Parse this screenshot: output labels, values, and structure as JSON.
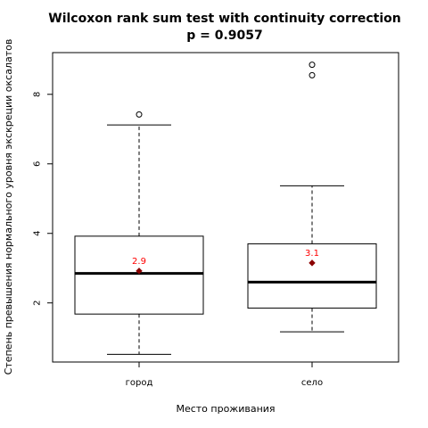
{
  "chart_data": {
    "type": "boxplot",
    "title": "Wilcoxon rank sum test with continuity correction",
    "subtitle": "p = 0.9057",
    "xlabel": "Место проживания",
    "ylabel": "Степень превышения нормального уровня экскреции оксалатов",
    "ylim": [
      0.3,
      9.2
    ],
    "yticks": [
      2,
      4,
      6,
      8
    ],
    "grid": false,
    "colors": {
      "box": "#000000",
      "mean_point": "#8b0000",
      "mean_label": "#ff0000"
    },
    "categories": [
      "город",
      "село"
    ],
    "boxes": [
      {
        "category": "город",
        "whisker_low": 0.52,
        "q1": 1.68,
        "median": 2.85,
        "q3": 3.92,
        "whisker_high": 7.12,
        "outliers": [
          7.42
        ],
        "mean": 2.92,
        "mean_label": "2.9"
      },
      {
        "category": "село",
        "whisker_low": 1.17,
        "q1": 1.85,
        "median": 2.6,
        "q3": 3.7,
        "whisker_high": 5.37,
        "outliers": [
          8.55,
          8.85
        ],
        "mean": 3.15,
        "mean_label": "3.1"
      }
    ]
  }
}
